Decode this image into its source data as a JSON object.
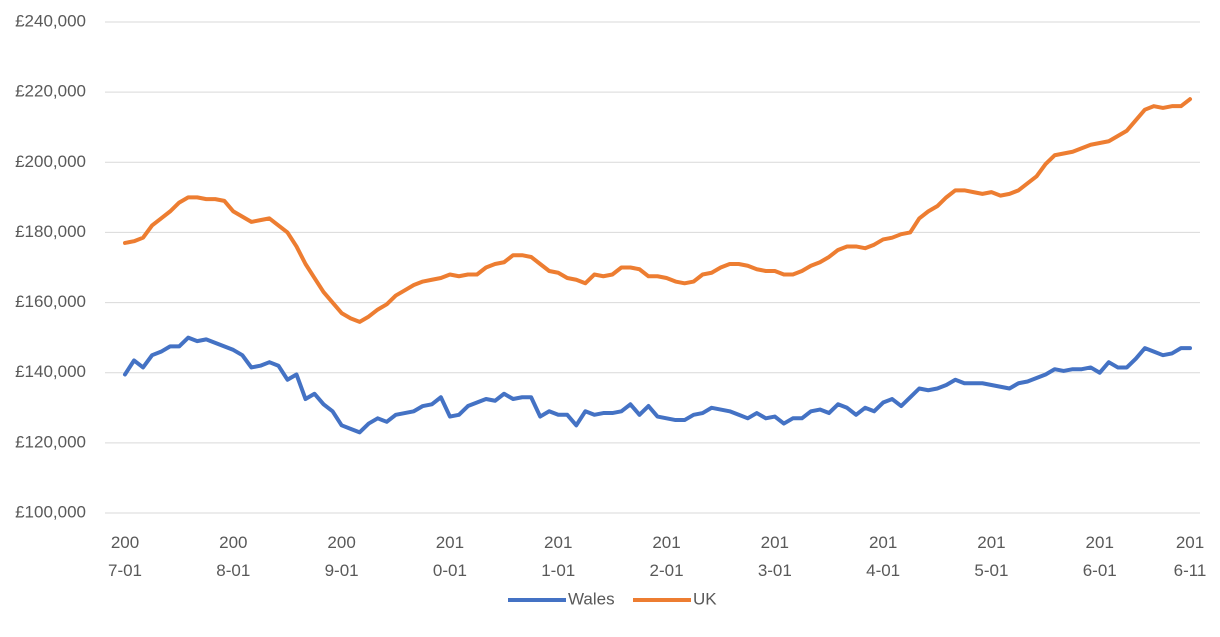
{
  "chart_data": {
    "type": "line",
    "categories": [
      "2007-01",
      null,
      null,
      null,
      null,
      null,
      null,
      null,
      null,
      null,
      null,
      null,
      "2008-01",
      null,
      null,
      null,
      null,
      null,
      null,
      null,
      null,
      null,
      null,
      null,
      "2009-01",
      null,
      null,
      null,
      null,
      null,
      null,
      null,
      null,
      null,
      null,
      null,
      "2010-01",
      null,
      null,
      null,
      null,
      null,
      null,
      null,
      null,
      null,
      null,
      null,
      "2011-01",
      null,
      null,
      null,
      null,
      null,
      null,
      null,
      null,
      null,
      null,
      null,
      "2012-01",
      null,
      null,
      null,
      null,
      null,
      null,
      null,
      null,
      null,
      null,
      null,
      "2013-01",
      null,
      null,
      null,
      null,
      null,
      null,
      null,
      null,
      null,
      null,
      null,
      "2014-01",
      null,
      null,
      null,
      null,
      null,
      null,
      null,
      null,
      null,
      null,
      null,
      "2015-01",
      null,
      null,
      null,
      null,
      null,
      null,
      null,
      null,
      null,
      null,
      null,
      "2016-01",
      null,
      null,
      null,
      null,
      null,
      null,
      null,
      null,
      null,
      "2016-11"
    ],
    "series": [
      {
        "name": "Wales",
        "color": "#4472c4",
        "values": [
          139500,
          143500,
          141500,
          145000,
          146000,
          147500,
          147500,
          150000,
          149000,
          149500,
          148500,
          147500,
          146500,
          145000,
          141500,
          142000,
          143000,
          142000,
          138000,
          139500,
          132500,
          134000,
          131000,
          129000,
          125000,
          124000,
          123000,
          125500,
          127000,
          126000,
          128000,
          128500,
          129000,
          130500,
          131000,
          133000,
          127500,
          128000,
          130500,
          131500,
          132500,
          132000,
          134000,
          132500,
          133000,
          133000,
          127500,
          129000,
          128000,
          128000,
          125000,
          129000,
          128000,
          128500,
          128500,
          129000,
          131000,
          128000,
          130500,
          127500,
          127000,
          126500,
          126500,
          128000,
          128500,
          130000,
          129500,
          129000,
          128000,
          127000,
          128500,
          127000,
          127500,
          125500,
          127000,
          127000,
          129000,
          129500,
          128500,
          131000,
          130000,
          128000,
          130000,
          129000,
          131500,
          132500,
          130500,
          133000,
          135500,
          135000,
          135500,
          136500,
          138000,
          137000,
          137000,
          137000,
          136500,
          136000,
          135500,
          137000,
          137500,
          138500,
          139500,
          141000,
          140500,
          141000,
          141000,
          141500,
          140000,
          143000,
          141500,
          141500,
          144000,
          147000,
          146000,
          145000,
          145500,
          147000,
          147000
        ]
      },
      {
        "name": "UK",
        "color": "#ed7d31",
        "values": [
          177000,
          177500,
          178500,
          182000,
          184000,
          186000,
          188500,
          190000,
          190000,
          189500,
          189500,
          189000,
          186000,
          184500,
          183000,
          183500,
          184000,
          182000,
          180000,
          176000,
          171000,
          167000,
          163000,
          160000,
          157000,
          155500,
          154500,
          156000,
          158000,
          159500,
          162000,
          163500,
          165000,
          166000,
          166500,
          167000,
          168000,
          167500,
          168000,
          168000,
          170000,
          171000,
          171500,
          173500,
          173500,
          173000,
          171000,
          169000,
          168500,
          167000,
          166500,
          165500,
          168000,
          167500,
          168000,
          170000,
          170000,
          169500,
          167500,
          167500,
          167000,
          166000,
          165500,
          166000,
          168000,
          168500,
          170000,
          171000,
          171000,
          170500,
          169500,
          169000,
          169000,
          168000,
          168000,
          169000,
          170500,
          171500,
          173000,
          175000,
          176000,
          176000,
          175500,
          176500,
          178000,
          178500,
          179500,
          180000,
          184000,
          186000,
          187500,
          190000,
          192000,
          192000,
          191500,
          191000,
          191500,
          190500,
          191000,
          192000,
          194000,
          196000,
          199500,
          202000,
          202500,
          203000,
          204000,
          205000,
          205500,
          206000,
          207500,
          209000,
          212000,
          215000,
          216000,
          215500,
          216000,
          216000,
          218000
        ]
      }
    ],
    "ylim": [
      100000,
      240000
    ],
    "yticks": [
      {
        "value": 100000,
        "label": "£100,000"
      },
      {
        "value": 120000,
        "label": "£120,000"
      },
      {
        "value": 140000,
        "label": "£140,000"
      },
      {
        "value": 160000,
        "label": "£160,000"
      },
      {
        "value": 180000,
        "label": "£180,000"
      },
      {
        "value": 200000,
        "label": "£200,000"
      },
      {
        "value": 220000,
        "label": "£220,000"
      },
      {
        "value": 240000,
        "label": "£240,000"
      }
    ],
    "grid": true,
    "legend": "bottom"
  }
}
